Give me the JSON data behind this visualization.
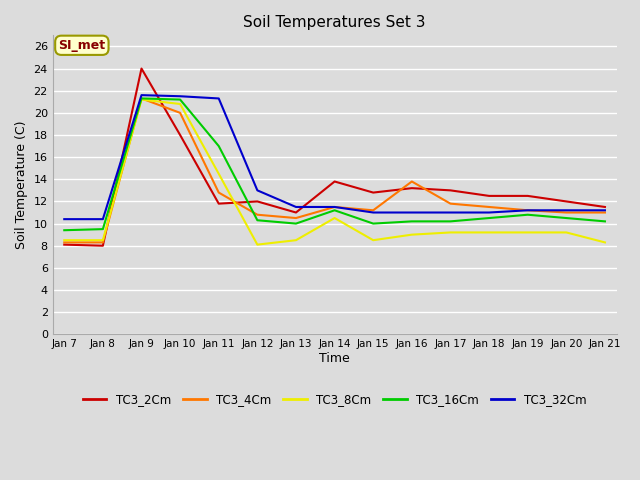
{
  "title": "Soil Temperatures Set 3",
  "xlabel": "Time",
  "ylabel": "Soil Temperature (C)",
  "annotation_text": "SI_met",
  "annotation_bg": "#ffffcc",
  "annotation_border": "#999900",
  "annotation_text_color": "#880000",
  "ylim": [
    0,
    27
  ],
  "yticks": [
    0,
    2,
    4,
    6,
    8,
    10,
    12,
    14,
    16,
    18,
    20,
    22,
    24,
    26
  ],
  "xtick_labels": [
    "Jan 7",
    "Jan 8",
    "Jan 9",
    "Jan 10",
    "Jan 11",
    "Jan 12",
    "Jan 13",
    "Jan 14",
    "Jan 15",
    "Jan 16",
    "Jan 17",
    "Jan 18",
    "Jan 19",
    "Jan 20",
    "Jan 21"
  ],
  "plot_bg": "#dcdcdc",
  "grid_color": "#ffffff",
  "series": {
    "TC3_2Cm": {
      "color": "#cc0000",
      "data": [
        8.1,
        8.0,
        24.0,
        18.0,
        11.8,
        12.0,
        11.0,
        13.8,
        12.8,
        13.2,
        13.0,
        12.5,
        12.5,
        12.0,
        11.5
      ]
    },
    "TC3_4Cm": {
      "color": "#ff7700",
      "data": [
        8.3,
        8.3,
        21.3,
        20.0,
        12.8,
        10.8,
        10.5,
        11.5,
        11.2,
        13.8,
        11.8,
        11.5,
        11.2,
        11.0,
        11.0
      ]
    },
    "TC3_8Cm": {
      "color": "#eeee00",
      "data": [
        8.5,
        8.5,
        21.2,
        20.8,
        14.5,
        8.1,
        8.5,
        10.5,
        8.5,
        9.0,
        9.2,
        9.2,
        9.2,
        9.2,
        8.3
      ]
    },
    "TC3_16Cm": {
      "color": "#00cc00",
      "data": [
        9.4,
        9.5,
        21.3,
        21.2,
        17.0,
        10.3,
        10.0,
        11.2,
        10.0,
        10.2,
        10.2,
        10.5,
        10.8,
        10.5,
        10.2
      ]
    },
    "TC3_32Cm": {
      "color": "#0000cc",
      "data": [
        10.4,
        10.4,
        21.6,
        21.5,
        21.3,
        13.0,
        11.5,
        11.5,
        11.0,
        11.0,
        11.0,
        11.0,
        11.2,
        11.2,
        11.2
      ]
    }
  },
  "figsize": [
    6.4,
    4.8
  ],
  "dpi": 100
}
